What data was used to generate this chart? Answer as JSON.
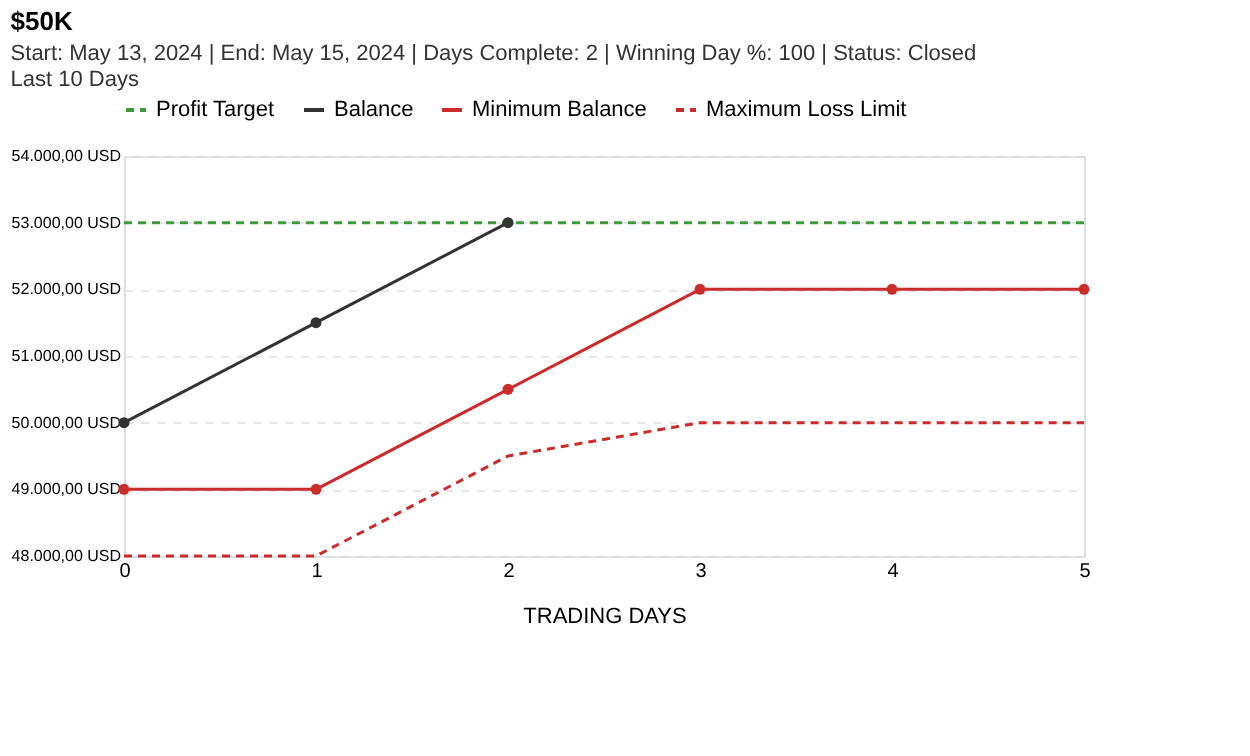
{
  "chart_data": {
    "type": "line",
    "title": "$50K",
    "subtitle": "Start: May 13, 2024   |   End: May 15, 2024   |   Days Complete: 2   |   Winning Day %: 100   |   Status: Closed",
    "annotations": [
      "Last 10 Days"
    ],
    "xlabel": "TRADING DAYS",
    "x": [
      0,
      1,
      2,
      3,
      4,
      5
    ],
    "xlim": [
      0,
      5
    ],
    "xticks": [
      0,
      1,
      2,
      3,
      4,
      5
    ],
    "ylim": [
      48000,
      54000
    ],
    "yticks": [
      {
        "value": 48000,
        "label": "48.000,00 USD"
      },
      {
        "value": 49000,
        "label": "49.000,00 USD"
      },
      {
        "value": 50000,
        "label": "50.000,00 USD"
      },
      {
        "value": 51000,
        "label": "51.000,00 USD"
      },
      {
        "value": 52000,
        "label": "52.000,00 USD"
      },
      {
        "value": 53000,
        "label": "53.000,00 USD"
      },
      {
        "value": 54000,
        "label": "54.000,00 USD"
      }
    ],
    "grid": "y",
    "legend": "top left",
    "series": [
      {
        "name": "Profit Target",
        "color": "#3c9a3c",
        "line_style": "dashed",
        "marker": "none",
        "values": [
          53000,
          53000,
          53000,
          53000,
          53000,
          53000
        ]
      },
      {
        "name": "Balance",
        "color": "#333333",
        "line_style": "solid",
        "marker": "circle",
        "values": [
          50000,
          51500,
          53000,
          null,
          null,
          null
        ]
      },
      {
        "name": "Minimum Balance",
        "color": "#cc2b2b",
        "line_style": "solid",
        "marker": "circle",
        "values": [
          49000,
          49000,
          50500,
          52000,
          52000,
          52000
        ]
      },
      {
        "name": "Maximum Loss Limit",
        "color": "#cc2b2b",
        "line_style": "dashed",
        "marker": "none",
        "values": [
          48000,
          48000,
          49500,
          50000,
          50000,
          50000
        ]
      }
    ]
  }
}
